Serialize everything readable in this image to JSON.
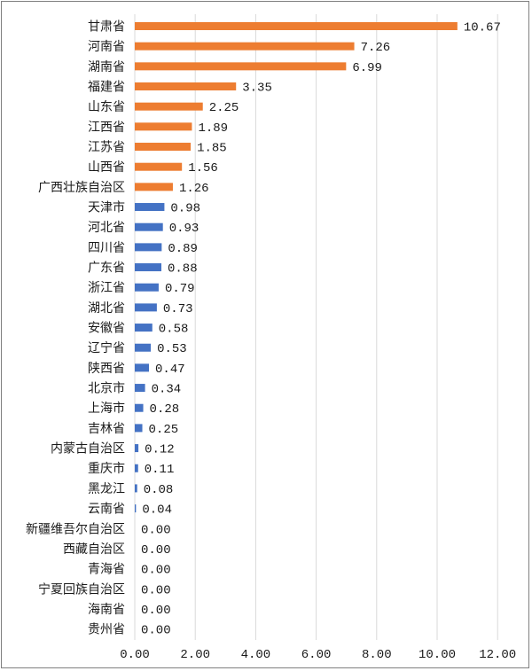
{
  "chart_data": {
    "type": "bar",
    "orientation": "horizontal",
    "categories": [
      "甘肃省",
      "河南省",
      "湖南省",
      "福建省",
      "山东省",
      "江西省",
      "江苏省",
      "山西省",
      "广西壮族自治区",
      "天津市",
      "河北省",
      "四川省",
      "广东省",
      "浙江省",
      "湖北省",
      "安徽省",
      "辽宁省",
      "陕西省",
      "北京市",
      "上海市",
      "吉林省",
      "内蒙古自治区",
      "重庆市",
      "黑龙江",
      "云南省",
      "新疆维吾尔自治区",
      "西藏自治区",
      "青海省",
      "宁夏回族自治区",
      "海南省",
      "贵州省"
    ],
    "values": [
      10.67,
      7.26,
      6.99,
      3.35,
      2.25,
      1.89,
      1.85,
      1.56,
      1.26,
      0.98,
      0.93,
      0.89,
      0.88,
      0.79,
      0.73,
      0.58,
      0.53,
      0.47,
      0.34,
      0.28,
      0.25,
      0.12,
      0.11,
      0.08,
      0.04,
      0.0,
      0.0,
      0.0,
      0.0,
      0.0,
      0.0
    ],
    "value_labels": [
      "10.67",
      "7.26",
      "6.99",
      "3.35",
      "2.25",
      "1.89",
      "1.85",
      "1.56",
      "1.26",
      "0.98",
      "0.93",
      "0.89",
      "0.88",
      "0.79",
      "0.73",
      "0.58",
      "0.53",
      "0.47",
      "0.34",
      "0.28",
      "0.25",
      "0.12",
      "0.11",
      "0.08",
      "0.04",
      "0.00",
      "0.00",
      "0.00",
      "0.00",
      "0.00",
      "0.00"
    ],
    "highlight_count": 9,
    "colors": {
      "highlight": "#ed7d31",
      "normal": "#4472c4"
    },
    "xlim": [
      0,
      12
    ],
    "xticks": [
      "0.00",
      "2.00",
      "4.00",
      "6.00",
      "8.00",
      "10.00",
      "12.00"
    ],
    "grid": true,
    "legend": "none"
  }
}
